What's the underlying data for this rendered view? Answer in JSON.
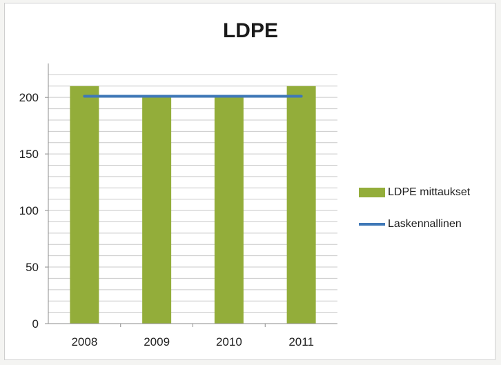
{
  "chart_data": {
    "type": "bar",
    "title": "LDPE",
    "categories": [
      "2008",
      "2009",
      "2010",
      "2011"
    ],
    "series": [
      {
        "name": "LDPE mittaukset",
        "kind": "bar",
        "values": [
          210,
          200,
          200,
          210
        ],
        "color": "#93ad3a"
      },
      {
        "name": "Laskennallinen",
        "kind": "line",
        "values": [
          201,
          201,
          201,
          201
        ],
        "color": "#3f78b7"
      }
    ],
    "yticks": [
      0,
      50,
      100,
      150,
      200
    ],
    "ylim": [
      0,
      230
    ],
    "grid": true,
    "legend_position": "right"
  }
}
